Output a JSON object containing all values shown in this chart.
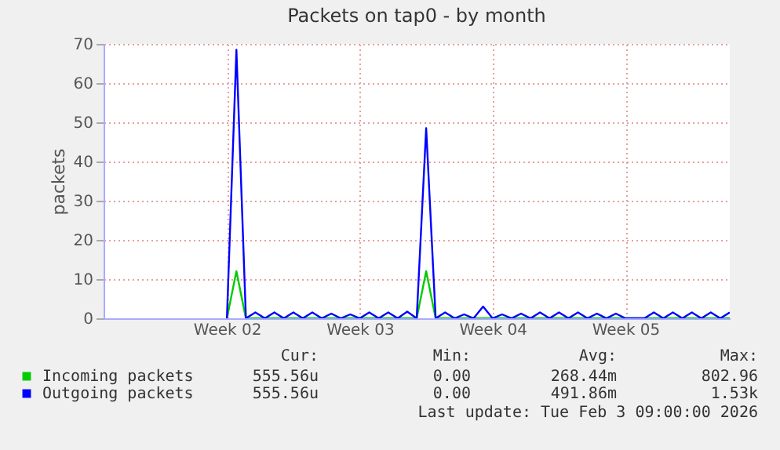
{
  "chart_data": {
    "type": "line",
    "title": "Packets on tap0 - by month",
    "ylabel": "packets",
    "categories": [
      null,
      null,
      null,
      null,
      null,
      null,
      null,
      null,
      null,
      null,
      null,
      null,
      null,
      "Week 02",
      null,
      null,
      null,
      null,
      null,
      null,
      null,
      null,
      null,
      null,
      null,
      null,
      null,
      "Week 03",
      null,
      null,
      null,
      null,
      null,
      null,
      null,
      null,
      null,
      null,
      null,
      null,
      null,
      "Week 04",
      null,
      null,
      null,
      null,
      null,
      null,
      null,
      null,
      null,
      null,
      null,
      null,
      null,
      "Week 05",
      null,
      null,
      null,
      null,
      null,
      null,
      null,
      null,
      null,
      null,
      null
    ],
    "ylim": [
      0,
      70
    ],
    "yticks": [
      0,
      10,
      20,
      30,
      40,
      50,
      60,
      70
    ],
    "grid": true,
    "legend": "bottom",
    "line_style": "solid",
    "series": [
      {
        "name": "Incoming packets",
        "color": "#00cc00",
        "values": [
          null,
          null,
          null,
          null,
          null,
          null,
          null,
          null,
          null,
          null,
          null,
          null,
          null,
          0,
          12,
          0,
          0,
          0,
          0,
          0,
          0,
          0,
          0,
          0,
          0,
          0,
          0,
          0,
          0,
          0,
          0,
          0,
          0,
          0,
          12,
          0,
          0,
          0,
          0,
          0,
          0,
          0,
          0,
          0,
          0,
          0,
          0,
          0,
          0,
          0,
          0,
          0,
          0,
          0,
          0,
          0,
          0,
          0,
          0,
          0,
          0,
          0,
          0,
          0,
          0,
          0,
          0
        ]
      },
      {
        "name": "Outgoing packets",
        "color": "#0000ff",
        "values": [
          null,
          null,
          null,
          null,
          null,
          null,
          null,
          null,
          null,
          null,
          null,
          null,
          null,
          0,
          68.5,
          0,
          1.5,
          0,
          1.5,
          0,
          1.5,
          0,
          1.5,
          0,
          1.2,
          0,
          1.0,
          0,
          1.5,
          0,
          1.5,
          0,
          1.7,
          0,
          48.5,
          0,
          1.5,
          0,
          1.0,
          0,
          3.0,
          0,
          1.0,
          0,
          1.2,
          0,
          1.5,
          0,
          1.5,
          0,
          1.5,
          0,
          1.2,
          0,
          1.2,
          0,
          0,
          0,
          1.5,
          0,
          1.5,
          0,
          1.5,
          0,
          1.5,
          0,
          1.5
        ]
      }
    ],
    "annotations": [
      "Cur:",
      "Min:",
      "Avg:",
      "Max:",
      "555.56u",
      "0.00",
      "268.44m",
      "802.96",
      "555.56u",
      "0.00",
      "491.86m",
      "1.53k",
      "Last update: Tue Feb  3 09:00:00 2026"
    ]
  }
}
